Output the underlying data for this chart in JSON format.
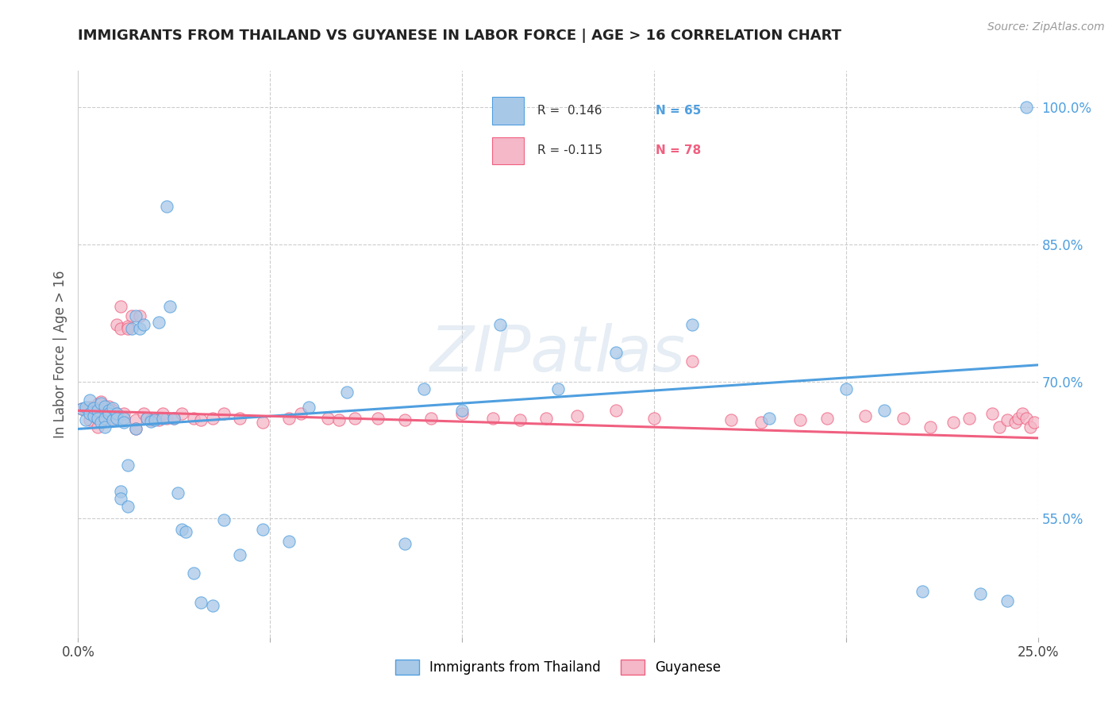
{
  "title": "IMMIGRANTS FROM THAILAND VS GUYANESE IN LABOR FORCE | AGE > 16 CORRELATION CHART",
  "source": "Source: ZipAtlas.com",
  "ylabel": "In Labor Force | Age > 16",
  "yticks": [
    0.55,
    0.7,
    0.85,
    1.0
  ],
  "ytick_labels": [
    "55.0%",
    "70.0%",
    "85.0%",
    "100.0%"
  ],
  "xmin": 0.0,
  "xmax": 0.25,
  "ymin": 0.42,
  "ymax": 1.04,
  "color_thailand": "#a8c8e8",
  "color_guyanese": "#f4b8c8",
  "line_color_thailand": "#4f9fdf",
  "line_color_guyanese": "#f06080",
  "th_line_y0": 0.648,
  "th_line_y1": 0.718,
  "gu_line_y0": 0.668,
  "gu_line_y1": 0.638,
  "watermark": "ZIPatlas",
  "legend_r1": "R =  0.146",
  "legend_n1": "N = 65",
  "legend_r2": "R = -0.115",
  "legend_n2": "N = 78",
  "thailand_x": [
    0.001,
    0.002,
    0.002,
    0.003,
    0.003,
    0.004,
    0.004,
    0.005,
    0.005,
    0.006,
    0.006,
    0.007,
    0.007,
    0.007,
    0.008,
    0.008,
    0.009,
    0.009,
    0.01,
    0.01,
    0.011,
    0.011,
    0.012,
    0.012,
    0.013,
    0.013,
    0.014,
    0.015,
    0.015,
    0.016,
    0.017,
    0.018,
    0.019,
    0.02,
    0.021,
    0.022,
    0.023,
    0.024,
    0.025,
    0.026,
    0.027,
    0.028,
    0.03,
    0.032,
    0.035,
    0.038,
    0.042,
    0.048,
    0.055,
    0.06,
    0.07,
    0.085,
    0.09,
    0.1,
    0.11,
    0.125,
    0.14,
    0.16,
    0.18,
    0.2,
    0.21,
    0.22,
    0.235,
    0.242,
    0.247
  ],
  "thailand_y": [
    0.67,
    0.672,
    0.658,
    0.665,
    0.68,
    0.662,
    0.671,
    0.668,
    0.66,
    0.676,
    0.655,
    0.673,
    0.66,
    0.65,
    0.668,
    0.665,
    0.658,
    0.671,
    0.665,
    0.66,
    0.58,
    0.572,
    0.66,
    0.655,
    0.563,
    0.608,
    0.758,
    0.772,
    0.648,
    0.758,
    0.762,
    0.66,
    0.656,
    0.658,
    0.765,
    0.66,
    0.892,
    0.782,
    0.66,
    0.578,
    0.538,
    0.535,
    0.49,
    0.458,
    0.455,
    0.548,
    0.51,
    0.538,
    0.525,
    0.672,
    0.688,
    0.522,
    0.692,
    0.668,
    0.762,
    0.692,
    0.732,
    0.762,
    0.66,
    0.692,
    0.668,
    0.47,
    0.468,
    0.46,
    1.0
  ],
  "guyanese_x": [
    0.001,
    0.002,
    0.003,
    0.003,
    0.004,
    0.004,
    0.005,
    0.005,
    0.005,
    0.006,
    0.006,
    0.007,
    0.007,
    0.008,
    0.008,
    0.009,
    0.009,
    0.01,
    0.01,
    0.011,
    0.011,
    0.012,
    0.012,
    0.013,
    0.013,
    0.014,
    0.015,
    0.015,
    0.016,
    0.017,
    0.018,
    0.019,
    0.02,
    0.021,
    0.022,
    0.023,
    0.025,
    0.027,
    0.03,
    0.032,
    0.035,
    0.038,
    0.042,
    0.048,
    0.055,
    0.058,
    0.065,
    0.068,
    0.072,
    0.078,
    0.085,
    0.092,
    0.1,
    0.108,
    0.115,
    0.122,
    0.13,
    0.14,
    0.15,
    0.16,
    0.17,
    0.178,
    0.188,
    0.195,
    0.205,
    0.215,
    0.222,
    0.228,
    0.232,
    0.238,
    0.24,
    0.242,
    0.244,
    0.245,
    0.246,
    0.247,
    0.248,
    0.249
  ],
  "guyanese_y": [
    0.67,
    0.668,
    0.672,
    0.658,
    0.665,
    0.671,
    0.66,
    0.675,
    0.65,
    0.668,
    0.678,
    0.66,
    0.67,
    0.665,
    0.673,
    0.66,
    0.668,
    0.762,
    0.665,
    0.782,
    0.758,
    0.66,
    0.665,
    0.76,
    0.758,
    0.772,
    0.658,
    0.648,
    0.772,
    0.665,
    0.66,
    0.658,
    0.66,
    0.658,
    0.665,
    0.66,
    0.66,
    0.665,
    0.66,
    0.658,
    0.66,
    0.665,
    0.66,
    0.655,
    0.66,
    0.665,
    0.66,
    0.658,
    0.66,
    0.66,
    0.658,
    0.66,
    0.665,
    0.66,
    0.658,
    0.66,
    0.662,
    0.668,
    0.66,
    0.722,
    0.658,
    0.655,
    0.658,
    0.66,
    0.662,
    0.66,
    0.65,
    0.655,
    0.66,
    0.665,
    0.65,
    0.658,
    0.655,
    0.66,
    0.665,
    0.66,
    0.65,
    0.655
  ]
}
